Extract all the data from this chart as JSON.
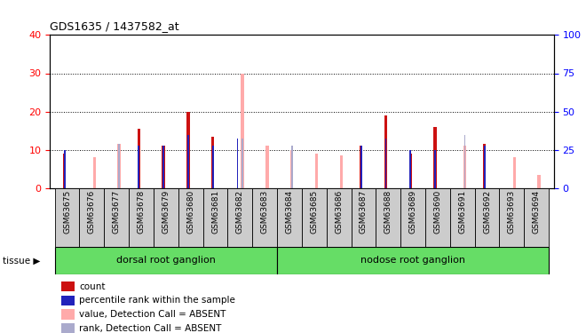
{
  "title": "GDS1635 / 1437582_at",
  "samples": [
    "GSM63675",
    "GSM63676",
    "GSM63677",
    "GSM63678",
    "GSM63679",
    "GSM63680",
    "GSM63681",
    "GSM63682",
    "GSM63683",
    "GSM63684",
    "GSM63685",
    "GSM63686",
    "GSM63687",
    "GSM63688",
    "GSM63689",
    "GSM63690",
    "GSM63691",
    "GSM63692",
    "GSM63693",
    "GSM63694"
  ],
  "red_count": [
    9,
    0,
    0,
    15.5,
    11,
    20,
    13.5,
    0,
    0,
    0,
    0,
    0,
    11,
    19,
    9,
    16,
    0,
    11.5,
    0,
    0
  ],
  "blue_rank": [
    10,
    0,
    0,
    11,
    11,
    14,
    11,
    13,
    0,
    0,
    0,
    0,
    11,
    13,
    10,
    10,
    0,
    11,
    0,
    0
  ],
  "pink_value": [
    0,
    8,
    11.5,
    0,
    0,
    0,
    0,
    30,
    11,
    10,
    9,
    8.5,
    0,
    0,
    0,
    0,
    11,
    0,
    8,
    3.5
  ],
  "lightblue_rank": [
    0,
    0,
    11.5,
    0,
    0,
    0,
    0,
    13,
    0,
    11,
    0,
    0,
    0,
    0,
    0,
    0,
    14,
    0,
    0,
    0
  ],
  "tissue_groups": [
    {
      "label": "dorsal root ganglion",
      "start": 0,
      "end": 8
    },
    {
      "label": "nodose root ganglion",
      "start": 9,
      "end": 19
    }
  ],
  "ylim_left": [
    0,
    40
  ],
  "ylim_right": [
    0,
    100
  ],
  "yticks_left": [
    0,
    10,
    20,
    30,
    40
  ],
  "yticks_right": [
    0,
    25,
    50,
    75,
    100
  ],
  "colors": {
    "red": "#cc1111",
    "blue": "#2222bb",
    "pink": "#ffaaaa",
    "lightblue": "#aaaacc"
  },
  "legend_items": [
    {
      "color": "#cc1111",
      "label": "count"
    },
    {
      "color": "#2222bb",
      "label": "percentile rank within the sample"
    },
    {
      "color": "#ffaaaa",
      "label": "value, Detection Call = ABSENT"
    },
    {
      "color": "#aaaacc",
      "label": "rank, Detection Call = ABSENT"
    }
  ],
  "tissue_bg": "#66dd66",
  "bg_tick_area": "#cccccc",
  "plot_bg": "#ffffff"
}
